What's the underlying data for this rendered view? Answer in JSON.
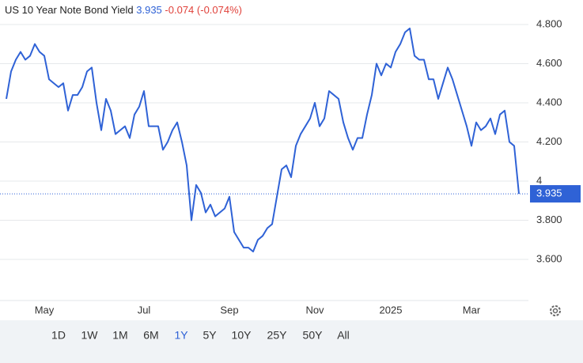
{
  "chart_data": {
    "type": "line",
    "title": "US 10 Year Note Bond Yield",
    "last": 3.935,
    "change": -0.074,
    "change_pct_label": "(-0.074%)",
    "color": "#2f62d6",
    "change_color": "#e0413a",
    "ylim": [
      3.39,
      4.925
    ],
    "yticks": [
      {
        "value": 3.6,
        "label": "3.600"
      },
      {
        "value": 3.8,
        "label": "3.800"
      },
      4,
      {
        "value": 4.2,
        "label": "4.200"
      },
      {
        "value": 4.4,
        "label": "4.400"
      },
      {
        "value": 4.6,
        "label": "4.600"
      },
      {
        "value": 4.8,
        "label": "4.800"
      }
    ],
    "grid": true,
    "categories": [
      null,
      null,
      null,
      null,
      null,
      null,
      null,
      null,
      "May",
      null,
      null,
      null,
      null,
      null,
      null,
      null,
      null,
      null,
      null,
      null,
      null,
      null,
      null,
      null,
      null,
      null,
      null,
      null,
      null,
      "Jul",
      null,
      null,
      null,
      null,
      null,
      null,
      null,
      null,
      null,
      null,
      null,
      null,
      null,
      null,
      null,
      null,
      null,
      "Sep",
      null,
      null,
      null,
      null,
      null,
      null,
      null,
      null,
      null,
      null,
      null,
      null,
      null,
      null,
      null,
      null,
      null,
      "Nov",
      null,
      null,
      null,
      null,
      null,
      null,
      null,
      null,
      null,
      null,
      null,
      null,
      null,
      null,
      null,
      "2025",
      null,
      null,
      null,
      null,
      null,
      null,
      null,
      null,
      null,
      null,
      null,
      null,
      null,
      null,
      null,
      null,
      "Mar",
      null,
      null,
      null,
      null,
      null,
      null,
      null,
      null,
      null,
      null
    ],
    "values": [
      4.42,
      4.56,
      4.62,
      4.66,
      4.62,
      4.64,
      4.7,
      4.66,
      4.64,
      4.52,
      4.5,
      4.48,
      4.5,
      4.36,
      4.44,
      4.44,
      4.48,
      4.56,
      4.58,
      4.4,
      4.26,
      4.42,
      4.36,
      4.24,
      4.26,
      4.28,
      4.22,
      4.34,
      4.38,
      4.46,
      4.28,
      4.28,
      4.28,
      4.16,
      4.2,
      4.26,
      4.3,
      4.2,
      4.08,
      3.8,
      3.98,
      3.94,
      3.84,
      3.88,
      3.82,
      3.84,
      3.86,
      3.92,
      3.74,
      3.7,
      3.66,
      3.66,
      3.64,
      3.7,
      3.72,
      3.76,
      3.78,
      3.92,
      4.06,
      4.08,
      4.02,
      4.18,
      4.24,
      4.28,
      4.32,
      4.4,
      4.28,
      4.32,
      4.46,
      4.44,
      4.42,
      4.3,
      4.22,
      4.16,
      4.22,
      4.22,
      4.34,
      4.44,
      4.6,
      4.54,
      4.6,
      4.58,
      4.66,
      4.7,
      4.76,
      4.78,
      4.64,
      4.62,
      4.62,
      4.52,
      4.52,
      4.42,
      4.5,
      4.58,
      4.52,
      4.44,
      4.36,
      4.28,
      4.18,
      4.3,
      4.26,
      4.28,
      4.32,
      4.24,
      4.34,
      4.36,
      4.2,
      4.18,
      3.935
    ],
    "ranges": [
      "1D",
      "1W",
      "1M",
      "6M",
      "1Y",
      "5Y",
      "10Y",
      "25Y",
      "50Y",
      "All"
    ],
    "selected_range": "1Y"
  }
}
